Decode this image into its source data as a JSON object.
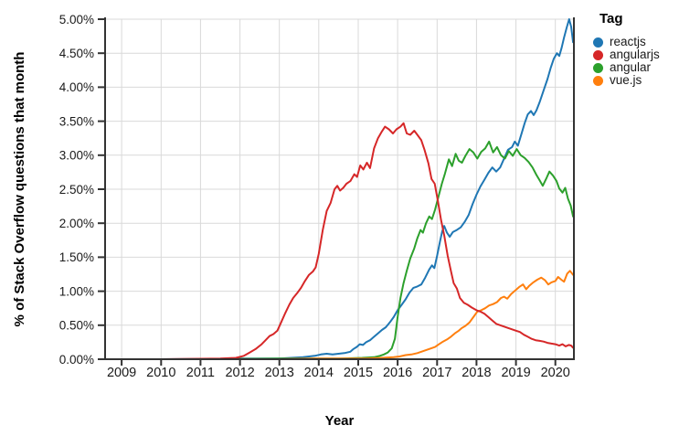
{
  "chart_data": {
    "type": "line",
    "title": "",
    "xlabel": "Year",
    "ylabel": "% of Stack Overflow questions that month",
    "legend_title": "Tag",
    "legend_position": "top-right-outside",
    "grid": true,
    "xlim": [
      2008.58,
      2020.47
    ],
    "ylim": [
      0,
      5
    ],
    "x_ticks": [
      2009,
      2010,
      2011,
      2012,
      2013,
      2014,
      2015,
      2016,
      2017,
      2018,
      2019,
      2020
    ],
    "y_ticks": [
      0,
      0.5,
      1,
      1.5,
      2,
      2.5,
      3,
      3.5,
      4,
      4.5,
      5
    ],
    "y_tick_suffix": "%",
    "y_tick_decimals": 2,
    "colors": {
      "grid": "#d9d9d9",
      "spine": "#333333",
      "tick_text": "#1a1a1a",
      "title_text": "#000000"
    },
    "series": [
      {
        "name": "reactjs",
        "color": "#1f77b4",
        "points": [
          [
            2008.58,
            0
          ],
          [
            2010,
            0
          ],
          [
            2012,
            0.01
          ],
          [
            2013,
            0.01
          ],
          [
            2013.3,
            0.02
          ],
          [
            2013.6,
            0.03
          ],
          [
            2013.9,
            0.05
          ],
          [
            2014.05,
            0.07
          ],
          [
            2014.2,
            0.08
          ],
          [
            2014.35,
            0.07
          ],
          [
            2014.5,
            0.08
          ],
          [
            2014.65,
            0.09
          ],
          [
            2014.8,
            0.11
          ],
          [
            2014.88,
            0.15
          ],
          [
            2014.96,
            0.18
          ],
          [
            2015.04,
            0.22
          ],
          [
            2015.12,
            0.21
          ],
          [
            2015.2,
            0.25
          ],
          [
            2015.3,
            0.28
          ],
          [
            2015.4,
            0.33
          ],
          [
            2015.5,
            0.38
          ],
          [
            2015.6,
            0.43
          ],
          [
            2015.7,
            0.47
          ],
          [
            2015.8,
            0.54
          ],
          [
            2015.9,
            0.62
          ],
          [
            2016.0,
            0.72
          ],
          [
            2016.1,
            0.8
          ],
          [
            2016.2,
            0.88
          ],
          [
            2016.3,
            0.98
          ],
          [
            2016.4,
            1.05
          ],
          [
            2016.5,
            1.07
          ],
          [
            2016.6,
            1.1
          ],
          [
            2016.7,
            1.2
          ],
          [
            2016.8,
            1.32
          ],
          [
            2016.87,
            1.38
          ],
          [
            2016.93,
            1.34
          ],
          [
            2017.0,
            1.52
          ],
          [
            2017.07,
            1.72
          ],
          [
            2017.13,
            1.88
          ],
          [
            2017.18,
            1.96
          ],
          [
            2017.25,
            1.86
          ],
          [
            2017.32,
            1.8
          ],
          [
            2017.4,
            1.87
          ],
          [
            2017.5,
            1.9
          ],
          [
            2017.6,
            1.94
          ],
          [
            2017.7,
            2.02
          ],
          [
            2017.8,
            2.12
          ],
          [
            2017.9,
            2.28
          ],
          [
            2018.0,
            2.42
          ],
          [
            2018.1,
            2.54
          ],
          [
            2018.2,
            2.64
          ],
          [
            2018.3,
            2.74
          ],
          [
            2018.4,
            2.82
          ],
          [
            2018.5,
            2.76
          ],
          [
            2018.6,
            2.82
          ],
          [
            2018.7,
            2.95
          ],
          [
            2018.8,
            3.08
          ],
          [
            2018.9,
            3.12
          ],
          [
            2018.97,
            3.2
          ],
          [
            2019.05,
            3.14
          ],
          [
            2019.15,
            3.33
          ],
          [
            2019.22,
            3.47
          ],
          [
            2019.3,
            3.6
          ],
          [
            2019.38,
            3.65
          ],
          [
            2019.45,
            3.59
          ],
          [
            2019.52,
            3.66
          ],
          [
            2019.6,
            3.78
          ],
          [
            2019.7,
            3.95
          ],
          [
            2019.8,
            4.12
          ],
          [
            2019.88,
            4.28
          ],
          [
            2019.96,
            4.42
          ],
          [
            2020.04,
            4.5
          ],
          [
            2020.1,
            4.46
          ],
          [
            2020.16,
            4.58
          ],
          [
            2020.22,
            4.73
          ],
          [
            2020.29,
            4.88
          ],
          [
            2020.35,
            5.0
          ],
          [
            2020.4,
            4.89
          ],
          [
            2020.45,
            4.66
          ]
        ]
      },
      {
        "name": "angularjs",
        "color": "#d62728",
        "points": [
          [
            2008.58,
            0
          ],
          [
            2010,
            0
          ],
          [
            2011.5,
            0.01
          ],
          [
            2011.9,
            0.02
          ],
          [
            2012.1,
            0.05
          ],
          [
            2012.25,
            0.1
          ],
          [
            2012.4,
            0.15
          ],
          [
            2012.55,
            0.22
          ],
          [
            2012.65,
            0.28
          ],
          [
            2012.75,
            0.34
          ],
          [
            2012.85,
            0.37
          ],
          [
            2012.95,
            0.42
          ],
          [
            2013.05,
            0.55
          ],
          [
            2013.15,
            0.68
          ],
          [
            2013.25,
            0.8
          ],
          [
            2013.35,
            0.9
          ],
          [
            2013.45,
            0.97
          ],
          [
            2013.55,
            1.05
          ],
          [
            2013.65,
            1.15
          ],
          [
            2013.75,
            1.24
          ],
          [
            2013.85,
            1.29
          ],
          [
            2013.92,
            1.35
          ],
          [
            2014.0,
            1.55
          ],
          [
            2014.1,
            1.9
          ],
          [
            2014.2,
            2.18
          ],
          [
            2014.3,
            2.3
          ],
          [
            2014.4,
            2.5
          ],
          [
            2014.47,
            2.55
          ],
          [
            2014.54,
            2.48
          ],
          [
            2014.62,
            2.52
          ],
          [
            2014.7,
            2.58
          ],
          [
            2014.8,
            2.62
          ],
          [
            2014.9,
            2.72
          ],
          [
            2014.97,
            2.68
          ],
          [
            2015.05,
            2.85
          ],
          [
            2015.13,
            2.79
          ],
          [
            2015.22,
            2.89
          ],
          [
            2015.3,
            2.81
          ],
          [
            2015.4,
            3.1
          ],
          [
            2015.5,
            3.25
          ],
          [
            2015.6,
            3.35
          ],
          [
            2015.68,
            3.42
          ],
          [
            2015.78,
            3.38
          ],
          [
            2015.88,
            3.32
          ],
          [
            2015.97,
            3.38
          ],
          [
            2016.07,
            3.42
          ],
          [
            2016.15,
            3.47
          ],
          [
            2016.23,
            3.32
          ],
          [
            2016.32,
            3.3
          ],
          [
            2016.42,
            3.36
          ],
          [
            2016.5,
            3.3
          ],
          [
            2016.6,
            3.22
          ],
          [
            2016.68,
            3.08
          ],
          [
            2016.78,
            2.88
          ],
          [
            2016.86,
            2.65
          ],
          [
            2016.94,
            2.58
          ],
          [
            2017.02,
            2.33
          ],
          [
            2017.1,
            2.05
          ],
          [
            2017.18,
            1.82
          ],
          [
            2017.27,
            1.52
          ],
          [
            2017.35,
            1.3
          ],
          [
            2017.42,
            1.12
          ],
          [
            2017.5,
            1.04
          ],
          [
            2017.58,
            0.9
          ],
          [
            2017.68,
            0.83
          ],
          [
            2017.78,
            0.8
          ],
          [
            2017.88,
            0.76
          ],
          [
            2018.0,
            0.72
          ],
          [
            2018.1,
            0.7
          ],
          [
            2018.2,
            0.67
          ],
          [
            2018.3,
            0.62
          ],
          [
            2018.4,
            0.57
          ],
          [
            2018.5,
            0.52
          ],
          [
            2018.6,
            0.5
          ],
          [
            2018.7,
            0.48
          ],
          [
            2018.8,
            0.46
          ],
          [
            2018.9,
            0.44
          ],
          [
            2019.0,
            0.42
          ],
          [
            2019.1,
            0.4
          ],
          [
            2019.2,
            0.36
          ],
          [
            2019.3,
            0.33
          ],
          [
            2019.4,
            0.3
          ],
          [
            2019.5,
            0.28
          ],
          [
            2019.6,
            0.27
          ],
          [
            2019.7,
            0.26
          ],
          [
            2019.8,
            0.24
          ],
          [
            2019.9,
            0.23
          ],
          [
            2020.0,
            0.22
          ],
          [
            2020.1,
            0.2
          ],
          [
            2020.18,
            0.22
          ],
          [
            2020.26,
            0.19
          ],
          [
            2020.34,
            0.21
          ],
          [
            2020.4,
            0.2
          ],
          [
            2020.45,
            0.17
          ]
        ]
      },
      {
        "name": "angular",
        "color": "#2ca02c",
        "points": [
          [
            2008.58,
            0
          ],
          [
            2011,
            0
          ],
          [
            2013,
            0.01
          ],
          [
            2014.5,
            0.01
          ],
          [
            2015.1,
            0.02
          ],
          [
            2015.4,
            0.03
          ],
          [
            2015.55,
            0.05
          ],
          [
            2015.65,
            0.07
          ],
          [
            2015.75,
            0.1
          ],
          [
            2015.85,
            0.16
          ],
          [
            2015.93,
            0.3
          ],
          [
            2016.0,
            0.62
          ],
          [
            2016.07,
            0.9
          ],
          [
            2016.15,
            1.12
          ],
          [
            2016.23,
            1.3
          ],
          [
            2016.32,
            1.48
          ],
          [
            2016.42,
            1.63
          ],
          [
            2016.5,
            1.78
          ],
          [
            2016.58,
            1.9
          ],
          [
            2016.64,
            1.86
          ],
          [
            2016.72,
            2.0
          ],
          [
            2016.8,
            2.1
          ],
          [
            2016.87,
            2.06
          ],
          [
            2016.95,
            2.2
          ],
          [
            2017.03,
            2.38
          ],
          [
            2017.12,
            2.58
          ],
          [
            2017.2,
            2.73
          ],
          [
            2017.3,
            2.94
          ],
          [
            2017.38,
            2.84
          ],
          [
            2017.47,
            3.02
          ],
          [
            2017.55,
            2.92
          ],
          [
            2017.63,
            2.89
          ],
          [
            2017.72,
            2.99
          ],
          [
            2017.82,
            3.09
          ],
          [
            2017.92,
            3.04
          ],
          [
            2018.02,
            2.95
          ],
          [
            2018.12,
            3.05
          ],
          [
            2018.22,
            3.1
          ],
          [
            2018.32,
            3.2
          ],
          [
            2018.42,
            3.04
          ],
          [
            2018.52,
            3.12
          ],
          [
            2018.62,
            3.0
          ],
          [
            2018.72,
            2.95
          ],
          [
            2018.82,
            3.06
          ],
          [
            2018.92,
            2.99
          ],
          [
            2019.02,
            3.09
          ],
          [
            2019.12,
            3.0
          ],
          [
            2019.22,
            2.96
          ],
          [
            2019.32,
            2.9
          ],
          [
            2019.42,
            2.82
          ],
          [
            2019.52,
            2.71
          ],
          [
            2019.6,
            2.63
          ],
          [
            2019.68,
            2.55
          ],
          [
            2019.78,
            2.67
          ],
          [
            2019.85,
            2.76
          ],
          [
            2019.94,
            2.7
          ],
          [
            2020.03,
            2.62
          ],
          [
            2020.1,
            2.51
          ],
          [
            2020.18,
            2.45
          ],
          [
            2020.25,
            2.52
          ],
          [
            2020.32,
            2.36
          ],
          [
            2020.39,
            2.26
          ],
          [
            2020.45,
            2.1
          ]
        ]
      },
      {
        "name": "vue.js",
        "color": "#ff7f0e",
        "points": [
          [
            2008.58,
            0
          ],
          [
            2013,
            0
          ],
          [
            2013.9,
            0.01
          ],
          [
            2015.2,
            0.01
          ],
          [
            2015.6,
            0.02
          ],
          [
            2015.9,
            0.03
          ],
          [
            2016.05,
            0.04
          ],
          [
            2016.2,
            0.06
          ],
          [
            2016.35,
            0.07
          ],
          [
            2016.5,
            0.09
          ],
          [
            2016.65,
            0.12
          ],
          [
            2016.8,
            0.15
          ],
          [
            2016.95,
            0.18
          ],
          [
            2017.05,
            0.22
          ],
          [
            2017.15,
            0.26
          ],
          [
            2017.25,
            0.29
          ],
          [
            2017.35,
            0.33
          ],
          [
            2017.45,
            0.38
          ],
          [
            2017.55,
            0.42
          ],
          [
            2017.63,
            0.46
          ],
          [
            2017.72,
            0.49
          ],
          [
            2017.82,
            0.54
          ],
          [
            2017.92,
            0.62
          ],
          [
            2018.02,
            0.7
          ],
          [
            2018.12,
            0.72
          ],
          [
            2018.22,
            0.75
          ],
          [
            2018.32,
            0.79
          ],
          [
            2018.42,
            0.81
          ],
          [
            2018.52,
            0.84
          ],
          [
            2018.62,
            0.9
          ],
          [
            2018.7,
            0.92
          ],
          [
            2018.78,
            0.89
          ],
          [
            2018.88,
            0.96
          ],
          [
            2018.98,
            1.01
          ],
          [
            2019.08,
            1.06
          ],
          [
            2019.18,
            1.1
          ],
          [
            2019.26,
            1.03
          ],
          [
            2019.34,
            1.08
          ],
          [
            2019.44,
            1.13
          ],
          [
            2019.54,
            1.17
          ],
          [
            2019.64,
            1.2
          ],
          [
            2019.74,
            1.16
          ],
          [
            2019.82,
            1.1
          ],
          [
            2019.9,
            1.13
          ],
          [
            2020.0,
            1.15
          ],
          [
            2020.07,
            1.21
          ],
          [
            2020.15,
            1.17
          ],
          [
            2020.22,
            1.14
          ],
          [
            2020.3,
            1.26
          ],
          [
            2020.37,
            1.3
          ],
          [
            2020.45,
            1.24
          ]
        ]
      }
    ]
  }
}
